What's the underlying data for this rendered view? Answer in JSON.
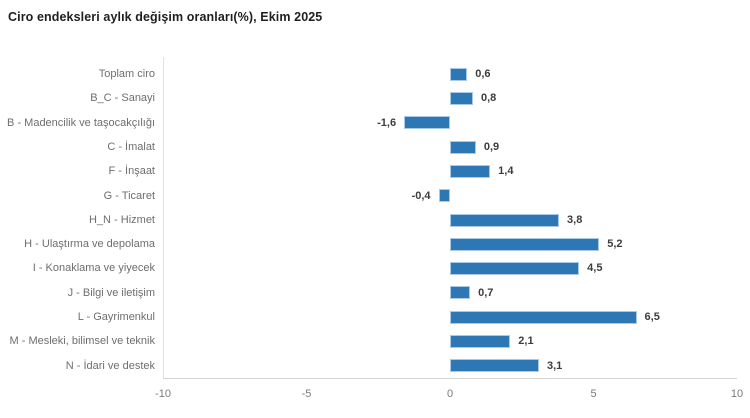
{
  "title": "Ciro endeksleri aylık değişim oranları(%), Ekim 2025",
  "colors": {
    "bar": "#2e77b5",
    "bar_border": "#aac9e6",
    "value_label": "#3d3d3d",
    "category_label": "#6e6e6e",
    "tick_label": "#7a7a7a",
    "axis_line": "#d6d6d6",
    "title": "#1f1f1f",
    "background": "#ffffff"
  },
  "chart_data": {
    "type": "bar",
    "orientation": "horizontal",
    "title": "Ciro endeksleri aylık değişim oranları(%), Ekim 2025",
    "categories": [
      "Toplam ciro",
      "B_C - Sanayi",
      "B - Madencilik ve taşocakçılığı",
      "C - İmalat",
      "F - İnşaat",
      "G - Ticaret",
      "H_N - Hizmet",
      "H - Ulaştırma ve depolama",
      "I - Konaklama ve yiyecek",
      "J - Bilgi ve iletişim",
      "L - Gayrimenkul",
      "M - Mesleki, bilimsel ve teknik",
      "N - İdari ve destek"
    ],
    "values": [
      0.6,
      0.8,
      -1.6,
      0.9,
      1.4,
      -0.4,
      3.8,
      5.2,
      4.5,
      0.7,
      6.5,
      2.1,
      3.1
    ],
    "value_labels": [
      "0,6",
      "0,8",
      "-1,6",
      "0,9",
      "1,4",
      "-0,4",
      "3,8",
      "5,2",
      "4,5",
      "0,7",
      "6,5",
      "2,1",
      "3,1"
    ],
    "xlim": [
      -10,
      10
    ],
    "x_ticks": [
      -10,
      -5,
      0,
      5,
      10
    ],
    "x_tick_labels": [
      "-10",
      "-5",
      "0",
      "5",
      "10"
    ],
    "grid": false,
    "legend": false,
    "value_label_position": "outside-end"
  }
}
